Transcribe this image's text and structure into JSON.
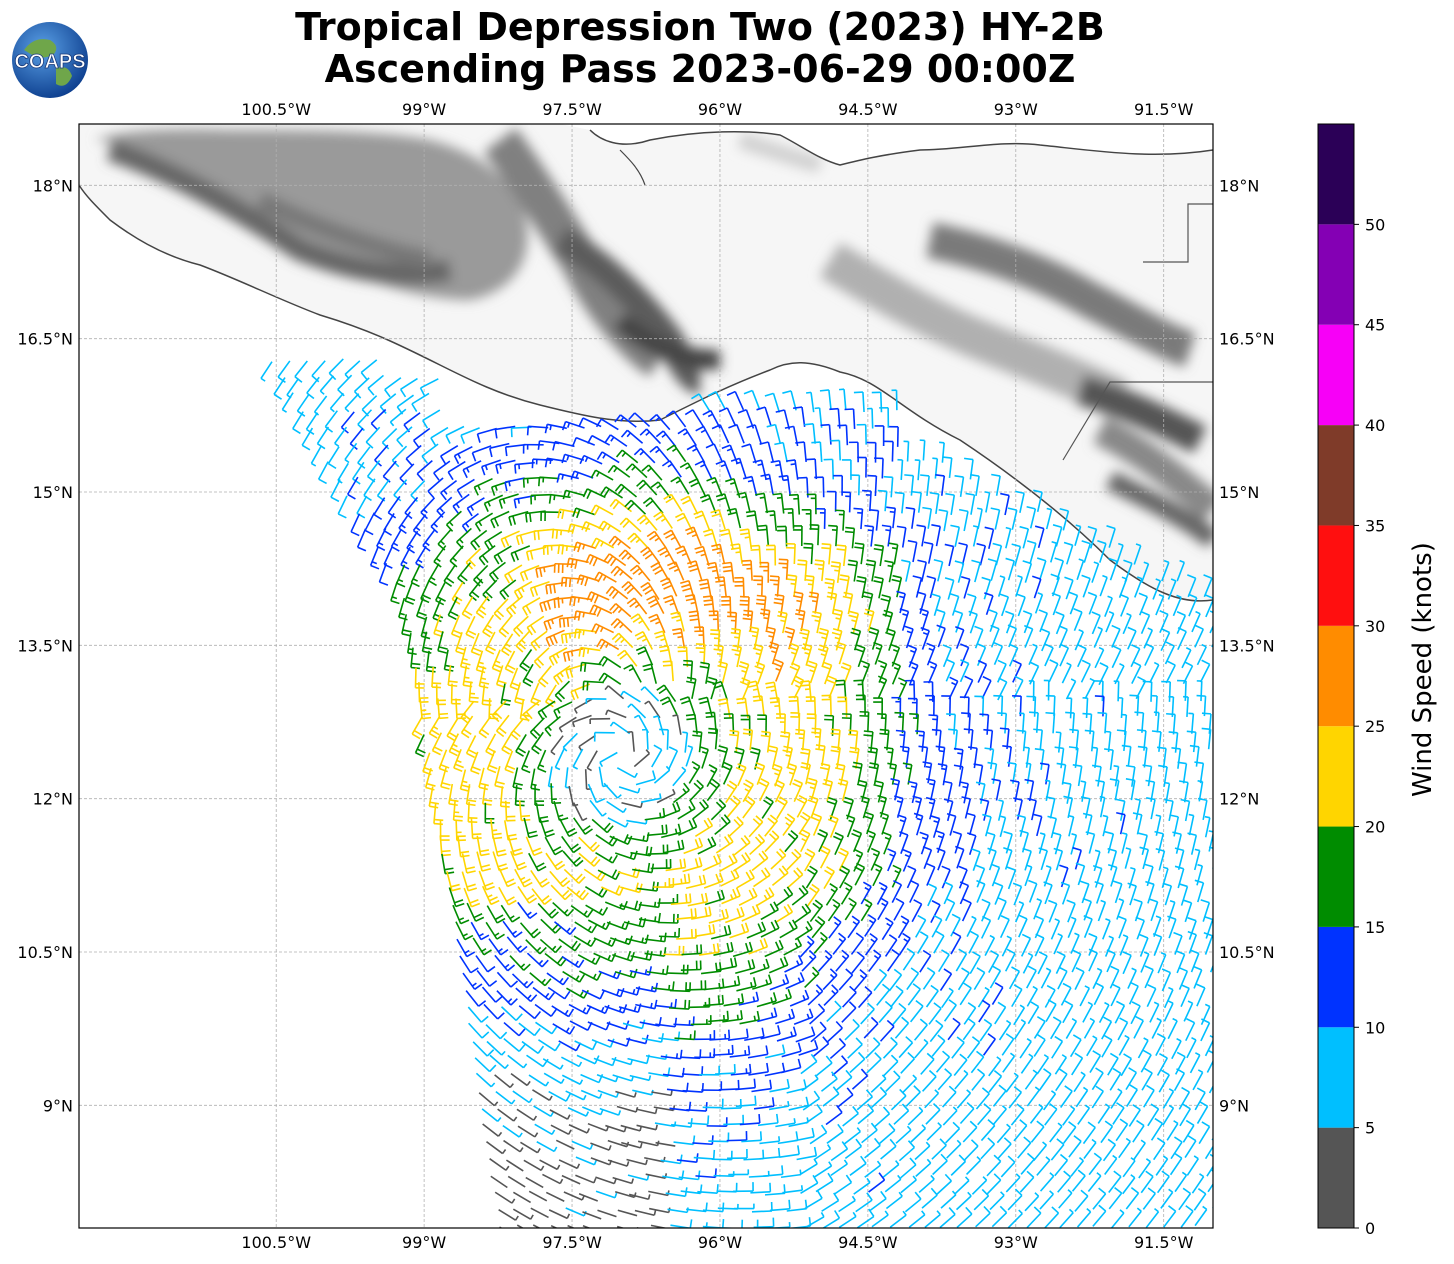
{
  "title": {
    "line1": "Tropical Depression Two (2023) HY-2B",
    "line2": "Ascending Pass 2023-06-29 00:00Z"
  },
  "logo": {
    "text": "COAPS",
    "icon": "globe-icon"
  },
  "map": {
    "lon_ticks": [
      "100.5°W",
      "99°W",
      "97.5°W",
      "96°W",
      "94.5°W",
      "93°W",
      "91.5°W"
    ],
    "lat_ticks": [
      "18°N",
      "16.5°N",
      "15°N",
      "13.5°N",
      "12°N",
      "10.5°N",
      "9°N"
    ],
    "lon_range": [
      -102.5,
      -91.0
    ],
    "lat_range": [
      7.8,
      18.6
    ],
    "grid": true,
    "terrain_shading": "grayscale",
    "barb_colors": {
      "0-5": "#555555",
      "5-10": "#00bfff",
      "10-15": "#0033ff",
      "15-20": "#008c00",
      "20-25": "#ffd500",
      "25-30": "#ff8c00",
      "30-35": "#ff0000",
      "35-40": "#7f3b29"
    }
  },
  "colorbar": {
    "label": "Wind Speed (knots)",
    "ticks": [
      "0",
      "5",
      "10",
      "15",
      "20",
      "25",
      "30",
      "35",
      "40",
      "45",
      "50"
    ],
    "colors": [
      "#555555",
      "#00bfff",
      "#0033ff",
      "#008c00",
      "#ffd500",
      "#ff8c00",
      "#ff0f0f",
      "#7f3b29",
      "#f700f7",
      "#8400b4",
      "#2b0057"
    ]
  }
}
